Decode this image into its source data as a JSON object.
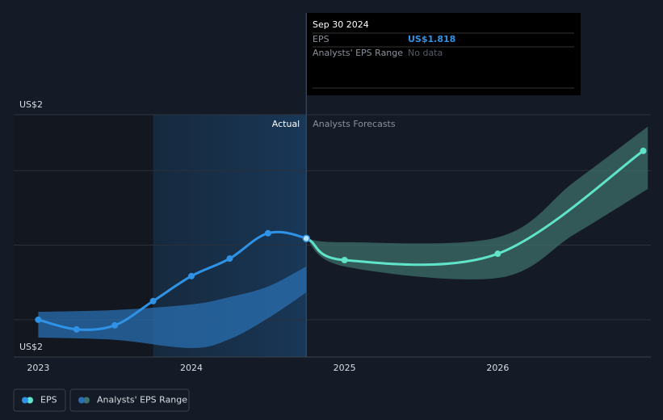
{
  "chart_data": {
    "type": "line",
    "annotations": {
      "actual": "Actual",
      "forecast": "Analysts Forecasts"
    },
    "forecast_start": 2024.75,
    "highlight": [
      2023.75,
      2024.75
    ],
    "xlim": [
      2022.84,
      2027
    ],
    "xticks": [
      2023,
      2024,
      2025,
      2026
    ],
    "ylim": [
      1.5,
      2.15
    ],
    "yticks": [
      {
        "value": 1.5,
        "label": "US$2"
      },
      {
        "value": 2.15,
        "label": "US$2"
      }
    ],
    "ygrid": [
      1.6,
      1.8,
      2.0
    ],
    "series": [
      {
        "name": "EPS",
        "color": "#2e93e6",
        "forecast_color": "#5fe3c9",
        "x": [
          2023,
          2023.25,
          2023.5,
          2023.75,
          2024,
          2024.25,
          2024.5,
          2024.75,
          2025,
          2026,
          2026.95
        ],
        "values": [
          1.6,
          1.574,
          1.585,
          1.65,
          1.717,
          1.764,
          1.832,
          1.818,
          1.76,
          1.777,
          2.053
        ]
      },
      {
        "name": "Analysts' EPS Range",
        "color": "#2a6fb0",
        "forecast_color": "#3f746c",
        "past": {
          "x": [
            2023,
            2023.5,
            2024,
            2024.25,
            2024.5,
            2024.75
          ],
          "low": [
            1.552,
            1.546,
            1.524,
            1.548,
            1.604,
            1.673
          ],
          "high": [
            1.621,
            1.626,
            1.641,
            1.661,
            1.689,
            1.743
          ]
        },
        "forecast": {
          "x": [
            2024.75,
            2025,
            2026,
            2026.5,
            2026.98
          ],
          "low": [
            1.818,
            1.743,
            1.712,
            1.829,
            1.951
          ],
          "high": [
            1.818,
            1.808,
            1.821,
            1.97,
            2.118
          ]
        }
      }
    ]
  },
  "tooltip": {
    "date": "Sep 30 2024",
    "rows": [
      {
        "label": "EPS",
        "value": "US$1.818"
      },
      {
        "label": "Analysts' EPS Range",
        "value": "No data"
      }
    ]
  }
}
